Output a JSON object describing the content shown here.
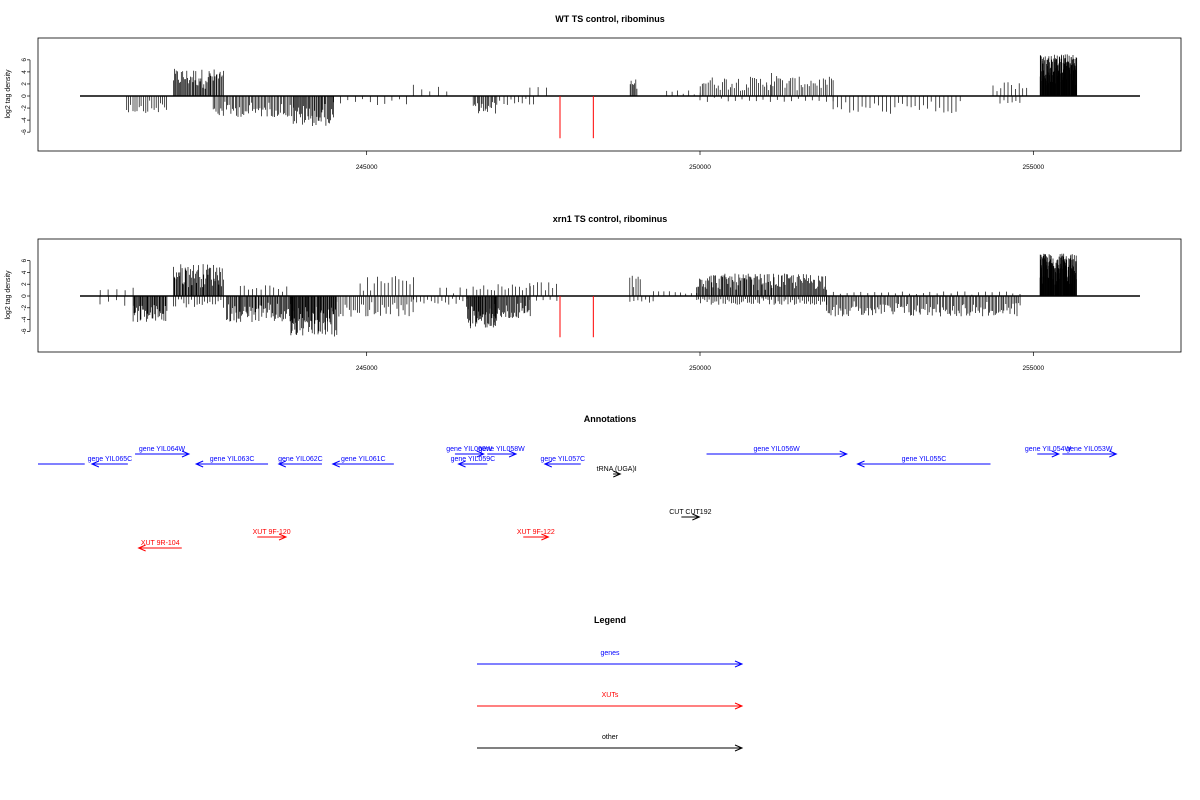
{
  "chart_data": [
    {
      "type": "bar",
      "title": "WT TS control, ribominus",
      "ylabel": "log2 tag density",
      "xlim": [
        240700,
        256600
      ],
      "ylim": [
        -7.5,
        7.5
      ],
      "yticks": [
        -6,
        -4,
        -2,
        0,
        2,
        4,
        6
      ],
      "xticks": [
        245000,
        250000,
        255000
      ],
      "xtick_labels": [
        "245000",
        "250000",
        "255000"
      ],
      "markers": [
        {
          "x": 247900,
          "y": -7,
          "color": "#ff0000"
        },
        {
          "x": 248400,
          "y": -7,
          "color": "#ff0000"
        }
      ],
      "clusters": [
        {
          "from": 242100,
          "to": 242850,
          "sign": 1,
          "max": 4.5,
          "density": 1.0
        },
        {
          "from": 241400,
          "to": 242000,
          "sign": -1,
          "max": 2.8,
          "density": 0.5
        },
        {
          "from": 242700,
          "to": 243900,
          "sign": -1,
          "max": 3.5,
          "density": 0.7
        },
        {
          "from": 243900,
          "to": 244500,
          "sign": -1,
          "max": 5.0,
          "density": 1.0
        },
        {
          "from": 244500,
          "to": 245600,
          "sign": -1,
          "max": 1.5,
          "density": 0.15
        },
        {
          "from": 245700,
          "to": 246200,
          "sign": 1,
          "max": 2.0,
          "density": 0.15
        },
        {
          "from": 246600,
          "to": 246950,
          "sign": -1,
          "max": 3.0,
          "density": 0.8
        },
        {
          "from": 247000,
          "to": 247500,
          "sign": -1,
          "max": 1.5,
          "density": 0.3
        },
        {
          "from": 247450,
          "to": 247700,
          "sign": 1,
          "max": 2.0,
          "density": 0.2
        },
        {
          "from": 248950,
          "to": 249050,
          "sign": 1,
          "max": 2.8,
          "density": 1.0
        },
        {
          "from": 249500,
          "to": 250000,
          "sign": 1,
          "max": 1.0,
          "density": 0.2
        },
        {
          "from": 250000,
          "to": 252000,
          "sign": 1,
          "max": 3.2,
          "density": 0.5
        },
        {
          "from": 250000,
          "to": 252000,
          "sign": -1,
          "max": 1.0,
          "density": 0.15
        },
        {
          "from": 251000,
          "to": 251150,
          "sign": 1,
          "max": 5.0,
          "density": 0.3
        },
        {
          "from": 252000,
          "to": 253900,
          "sign": -1,
          "max": 3.0,
          "density": 0.25
        },
        {
          "from": 254400,
          "to": 254900,
          "sign": 1,
          "max": 2.5,
          "density": 0.3
        },
        {
          "from": 254500,
          "to": 254800,
          "sign": -1,
          "max": 1.5,
          "density": 0.3
        },
        {
          "from": 255100,
          "to": 255650,
          "sign": 1,
          "max": 7.0,
          "density": 4.0
        }
      ]
    },
    {
      "type": "bar",
      "title": "xrn1 TS control, ribominus",
      "ylabel": "log2 tag density",
      "xlim": [
        240700,
        256600
      ],
      "ylim": [
        -7.5,
        7.5
      ],
      "yticks": [
        -6,
        -4,
        -2,
        0,
        2,
        4,
        6
      ],
      "xticks": [
        245000,
        250000,
        255000
      ],
      "xtick_labels": [
        "245000",
        "250000",
        "255000"
      ],
      "markers": [
        {
          "x": 247900,
          "y": -7,
          "color": "#ff0000"
        },
        {
          "x": 248400,
          "y": -7,
          "color": "#ff0000"
        }
      ],
      "clusters": [
        {
          "from": 241000,
          "to": 241500,
          "sign": 1,
          "max": 1.5,
          "density": 0.15
        },
        {
          "from": 241000,
          "to": 241500,
          "sign": -1,
          "max": 1.8,
          "density": 0.15
        },
        {
          "from": 241500,
          "to": 242000,
          "sign": -1,
          "max": 4.5,
          "density": 1.2
        },
        {
          "from": 242100,
          "to": 242850,
          "sign": 1,
          "max": 5.5,
          "density": 1.2
        },
        {
          "from": 242100,
          "to": 242850,
          "sign": -1,
          "max": 2.0,
          "density": 0.4
        },
        {
          "from": 242900,
          "to": 243900,
          "sign": -1,
          "max": 4.5,
          "density": 1.0
        },
        {
          "from": 243100,
          "to": 243800,
          "sign": 1,
          "max": 2.0,
          "density": 0.25
        },
        {
          "from": 243850,
          "to": 244550,
          "sign": -1,
          "max": 7.0,
          "density": 1.5
        },
        {
          "from": 244550,
          "to": 245700,
          "sign": -1,
          "max": 3.5,
          "density": 0.5
        },
        {
          "from": 244900,
          "to": 245700,
          "sign": 1,
          "max": 3.5,
          "density": 0.3
        },
        {
          "from": 245700,
          "to": 246500,
          "sign": -1,
          "max": 1.5,
          "density": 0.3
        },
        {
          "from": 246100,
          "to": 246500,
          "sign": 1,
          "max": 1.5,
          "density": 0.2
        },
        {
          "from": 246500,
          "to": 246950,
          "sign": -1,
          "max": 5.5,
          "density": 1.5
        },
        {
          "from": 246900,
          "to": 247450,
          "sign": -1,
          "max": 4.0,
          "density": 1.0
        },
        {
          "from": 246600,
          "to": 247450,
          "sign": 1,
          "max": 2.0,
          "density": 0.3
        },
        {
          "from": 247450,
          "to": 247850,
          "sign": 1,
          "max": 2.5,
          "density": 0.3
        },
        {
          "from": 247450,
          "to": 247850,
          "sign": -1,
          "max": 1.0,
          "density": 0.2
        },
        {
          "from": 248950,
          "to": 249100,
          "sign": 1,
          "max": 3.5,
          "density": 0.6
        },
        {
          "from": 248950,
          "to": 249300,
          "sign": -1,
          "max": 1.2,
          "density": 0.3
        },
        {
          "from": 249300,
          "to": 249950,
          "sign": 1,
          "max": 1.0,
          "density": 0.2
        },
        {
          "from": 249950,
          "to": 251900,
          "sign": 1,
          "max": 3.8,
          "density": 1.0
        },
        {
          "from": 249950,
          "to": 251900,
          "sign": -1,
          "max": 1.5,
          "density": 0.5
        },
        {
          "from": 251900,
          "to": 254800,
          "sign": -1,
          "max": 3.5,
          "density": 0.7
        },
        {
          "from": 252000,
          "to": 254800,
          "sign": 1,
          "max": 0.8,
          "density": 0.15
        },
        {
          "from": 255100,
          "to": 255650,
          "sign": 1,
          "max": 7.2,
          "density": 4.0
        }
      ]
    }
  ],
  "annotations": {
    "title": "Annotations",
    "xlim": [
      240700,
      256600
    ],
    "features": [
      {
        "label": "",
        "start": 240700,
        "end": 241350,
        "strand": "+",
        "color": "#0000ff",
        "row": "low",
        "arrow": false
      },
      {
        "label": "gene YIL065C",
        "start": 241450,
        "end": 241950,
        "strand": "-",
        "color": "#0000ff",
        "row": "low"
      },
      {
        "label": "gene YIL064W",
        "start": 242050,
        "end": 242800,
        "strand": "+",
        "color": "#0000ff",
        "row": "high"
      },
      {
        "label": "gene YIL063C",
        "start": 242900,
        "end": 243900,
        "strand": "-",
        "color": "#0000ff",
        "row": "low"
      },
      {
        "label": "gene YIL062C",
        "start": 244050,
        "end": 244650,
        "strand": "-",
        "color": "#0000ff",
        "row": "low"
      },
      {
        "label": "gene YIL061C",
        "start": 244800,
        "end": 245650,
        "strand": "-",
        "color": "#0000ff",
        "row": "low"
      },
      {
        "label": "gene YIL060W",
        "start": 246500,
        "end": 246900,
        "strand": "+",
        "color": "#0000ff",
        "row": "high"
      },
      {
        "label": "gene YIL058W",
        "start": 246950,
        "end": 247350,
        "strand": "+",
        "color": "#0000ff",
        "row": "high"
      },
      {
        "label": "gene YIL059C",
        "start": 246550,
        "end": 246950,
        "strand": "-",
        "color": "#0000ff",
        "row": "low"
      },
      {
        "label": "gene YIL057C",
        "start": 247750,
        "end": 248250,
        "strand": "-",
        "color": "#0000ff",
        "row": "low"
      },
      {
        "label": "tRNA (UGA)I",
        "start": 248700,
        "end": 248800,
        "strand": "+",
        "color": "#000000",
        "row": "trna"
      },
      {
        "label": "gene YIL056W",
        "start": 250000,
        "end": 251950,
        "strand": "+",
        "color": "#0000ff",
        "row": "high"
      },
      {
        "label": "gene YIL055C",
        "start": 252100,
        "end": 253950,
        "strand": "-",
        "color": "#0000ff",
        "row": "low"
      },
      {
        "label": "gene YIL054W",
        "start": 254600,
        "end": 254900,
        "strand": "+",
        "color": "#0000ff",
        "row": "high"
      },
      {
        "label": "gene YIL053W",
        "start": 254950,
        "end": 255700,
        "strand": "+",
        "color": "#0000ff",
        "row": "high"
      },
      {
        "label": "CUT CUT192",
        "start": 249650,
        "end": 249900,
        "strand": "+",
        "color": "#000000",
        "row": "cut"
      },
      {
        "label": "XUT 9R-104",
        "start": 242100,
        "end": 242700,
        "strand": "-",
        "color": "#ff0000",
        "row": "xutlow"
      },
      {
        "label": "XUT 9F-120",
        "start": 243750,
        "end": 244150,
        "strand": "+",
        "color": "#ff0000",
        "row": "xuthigh"
      },
      {
        "label": "XUT 9F-122",
        "start": 247450,
        "end": 247800,
        "strand": "+",
        "color": "#ff0000",
        "row": "xuthigh"
      }
    ]
  },
  "legend": {
    "title": "Legend",
    "items": [
      {
        "label": "genes",
        "color": "#0000ff"
      },
      {
        "label": "XUTs",
        "color": "#ff0000"
      },
      {
        "label": "other",
        "color": "#000000"
      }
    ]
  }
}
